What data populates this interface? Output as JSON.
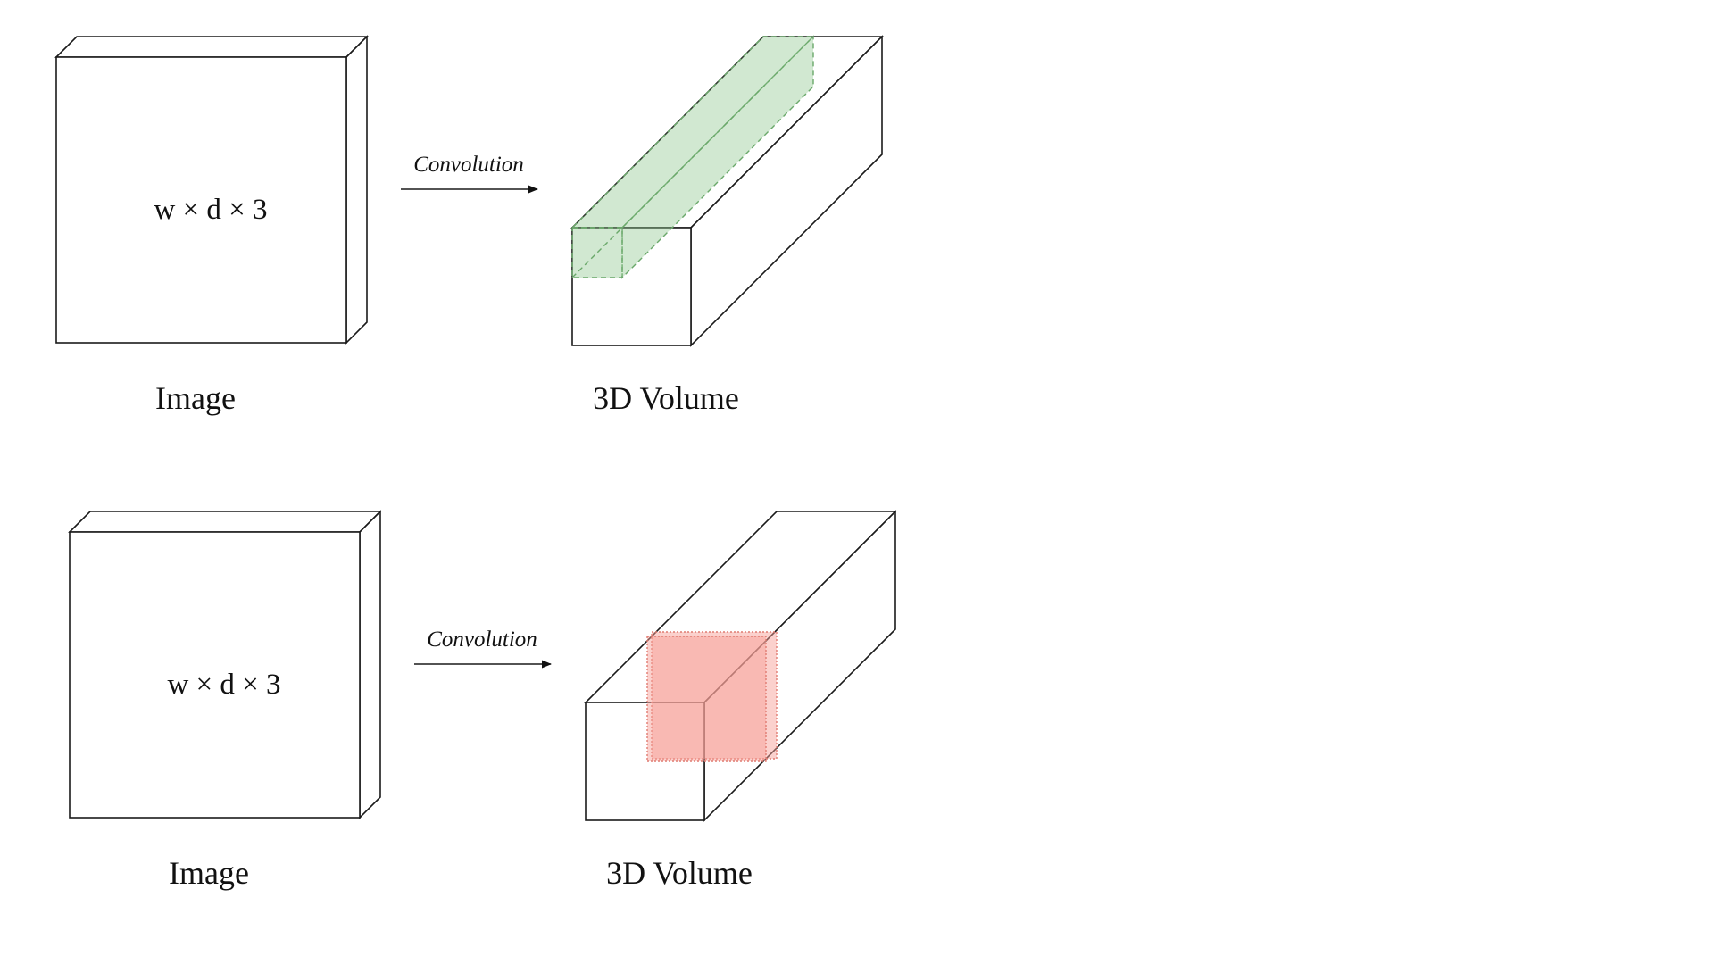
{
  "rows": [
    {
      "image": {
        "dims_label": "w × d × 3",
        "caption": "Image"
      },
      "arrow": {
        "label": "Convolution"
      },
      "volume": {
        "caption": "3D Volume",
        "highlight": "top-strip",
        "highlight_color": "#9ccc9c"
      }
    },
    {
      "image": {
        "dims_label": "w × d × 3",
        "caption": "Image"
      },
      "arrow": {
        "label": "Convolution"
      },
      "volume": {
        "caption": "3D Volume",
        "highlight": "cross-section",
        "highlight_color": "#f6a29a"
      }
    }
  ]
}
